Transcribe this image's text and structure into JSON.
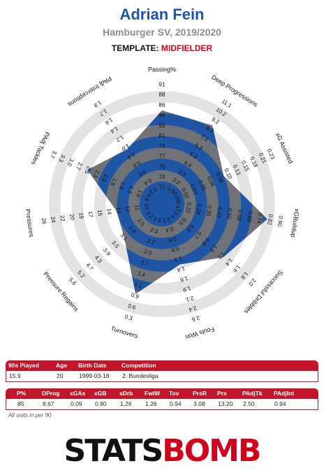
{
  "header": {
    "player": "Adrian Fein",
    "subtitle": "Hamburger SV, 2019/2020",
    "template_label": "TEMPLATE:",
    "template_value": "MIDFIELDER"
  },
  "chart_data": {
    "type": "radar",
    "colors": {
      "fill": "#6f7378",
      "inner_ring": "#1f55a5",
      "outer_ring": "#e3e3e3",
      "title": "#1f55a5",
      "accent": "#c0152a"
    },
    "metrics": [
      {
        "name": "Passing%",
        "value": 85,
        "ticks": [
          "72",
          "74",
          "75",
          "77",
          "79",
          "81",
          "83",
          "84",
          "86",
          "88",
          "91"
        ]
      },
      {
        "name": "Deep Progressions",
        "value": 8.67,
        "ticks": [
          "0.9",
          "2.2",
          "3.3",
          "4.4",
          "5.3",
          "6.3",
          "7.3",
          "8.2",
          "9.2",
          "10.2",
          "11.1"
        ]
      },
      {
        "name": "xG Assisted",
        "value": 0.09,
        "ticks": [
          "0.01",
          "0.02",
          "0.03",
          "0.05",
          "0.06",
          "0.08",
          "0.10",
          "0.13",
          "0.15",
          "0.18",
          "0.21",
          "0.23"
        ]
      },
      {
        "name": "xGBuildup",
        "value": 0.8,
        "ticks": [
          "0.17",
          "0.22",
          "0.28",
          "0.35",
          "0.43",
          "0.50",
          "0.58",
          "0.66",
          "0.74",
          "0.82",
          "0.90"
        ]
      },
      {
        "name": "Successful Dribbles",
        "value": 1.26,
        "ticks": [
          "0.4",
          "0.5",
          "0.6",
          "0.7",
          "0.9",
          "1.0",
          "1.2",
          "1.4",
          "1.6",
          "1.8",
          "2.0"
        ]
      },
      {
        "name": "Fouls Won",
        "value": 1.26,
        "ticks": [
          "0.2",
          "0.4",
          "0.6",
          "0.8",
          "1.1",
          "1.4",
          "1.6",
          "1.9",
          "2.1",
          "2.4",
          "2.6"
        ]
      },
      {
        "name": "Turnovers",
        "value": 0.94,
        "ticks": [
          "2.5",
          "2.3",
          "2.2",
          "2.0",
          "1.7",
          "1.4",
          "1.1",
          "0.9",
          "0.6",
          "0.3"
        ]
      },
      {
        "name": "Pressure Regains",
        "value": 3.08,
        "ticks": [
          "2.2",
          "2.5",
          "2.8",
          "3.1",
          "3.5",
          "3.9",
          "4.3",
          "4.7",
          "5.2",
          "5.6"
        ]
      },
      {
        "name": "Pressures",
        "value": 13.2,
        "ticks": [
          "10",
          "11",
          "12",
          "13",
          "14",
          "15",
          "17",
          "19",
          "20",
          "22",
          "24",
          "26"
        ]
      },
      {
        "name": "PAdj Tackles",
        "value": 2.5,
        "ticks": [
          "0.6",
          "1.0",
          "1.3",
          "1.6",
          "1.8",
          "2.0",
          "2.3",
          "2.5",
          "2.7",
          "3.0",
          "3.3",
          "3.7"
        ]
      },
      {
        "name": "PAdj Interceptions",
        "value": 0.94,
        "ticks": [
          "0.3",
          "0.4",
          "0.5",
          "0.6",
          "0.8",
          "1.0",
          "1.2",
          "1.4",
          "1.6",
          "1.7",
          "1.9"
        ]
      }
    ]
  },
  "info_table": {
    "headers": [
      "90s Played",
      "Age",
      "Birth Date",
      "Competition"
    ],
    "values": [
      "15.9",
      "20",
      "1999-03-18",
      "2. Bundesliga"
    ]
  },
  "stats_table": {
    "headers": [
      "P%",
      "DProg",
      "xGAs",
      "xGB",
      "sDrb",
      "FwlW",
      "Tov",
      "PrsR",
      "Prs",
      "PAdjTk",
      "PAdjInt"
    ],
    "values": [
      "85",
      "8.67",
      "0.09",
      "0.80",
      "1.26",
      "1.26",
      "0.94",
      "3.08",
      "13.20",
      "2.50",
      "0.94"
    ]
  },
  "footnote": "All units in per 90",
  "logo": {
    "part1": "STATS",
    "part2": "BOMB"
  }
}
